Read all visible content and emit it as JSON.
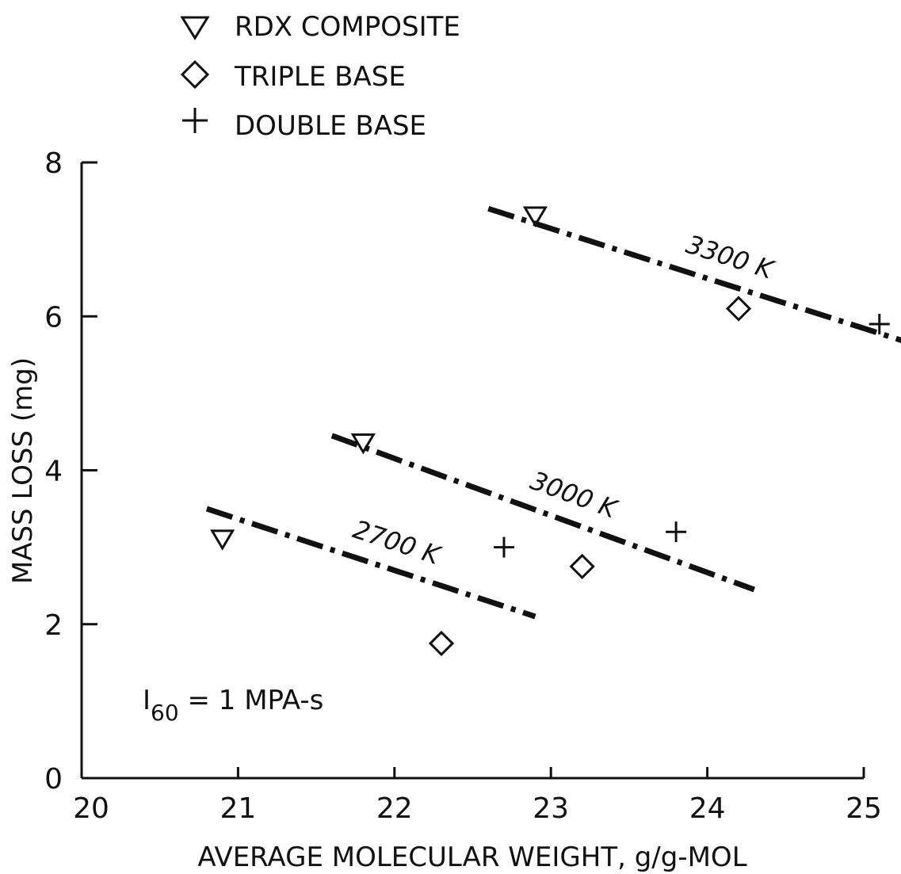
{
  "chart_data": {
    "type": "scatter",
    "title": "",
    "xlabel": "AVERAGE MOLECULAR WEIGHT, g/g-MOL",
    "ylabel": "MASS LOSS (mg)",
    "xlim": [
      20,
      25
    ],
    "ylim": [
      0,
      8
    ],
    "x_ticks": [
      20,
      21,
      22,
      23,
      24,
      25
    ],
    "y_ticks": [
      0,
      2,
      4,
      6,
      8
    ],
    "grid": false,
    "legend_position": "top-left",
    "series": [
      {
        "name": "RDX COMPOSITE",
        "marker": "triangle-down",
        "points": [
          [
            20.9,
            3.1
          ],
          [
            21.8,
            4.35
          ],
          [
            22.9,
            7.3
          ]
        ]
      },
      {
        "name": "TRIPLE BASE",
        "marker": "diamond",
        "points": [
          [
            22.3,
            1.75
          ],
          [
            23.2,
            2.75
          ],
          [
            24.2,
            6.1
          ]
        ]
      },
      {
        "name": "DOUBLE BASE",
        "marker": "plus",
        "points": [
          [
            22.7,
            3.0
          ],
          [
            23.8,
            3.2
          ],
          [
            25.1,
            5.9
          ]
        ]
      }
    ],
    "trend_lines": [
      {
        "label": "3300 K",
        "from": [
          22.6,
          7.4
        ],
        "to": [
          25.3,
          5.65
        ]
      },
      {
        "label": "3000 K",
        "from": [
          21.6,
          4.45
        ],
        "to": [
          24.3,
          2.45
        ]
      },
      {
        "label": "2700 K",
        "from": [
          20.8,
          3.5
        ],
        "to": [
          22.9,
          2.1
        ]
      }
    ],
    "annotation": {
      "symbol": "I",
      "subscript": "60",
      "text": " = 1 MPA-s"
    }
  }
}
